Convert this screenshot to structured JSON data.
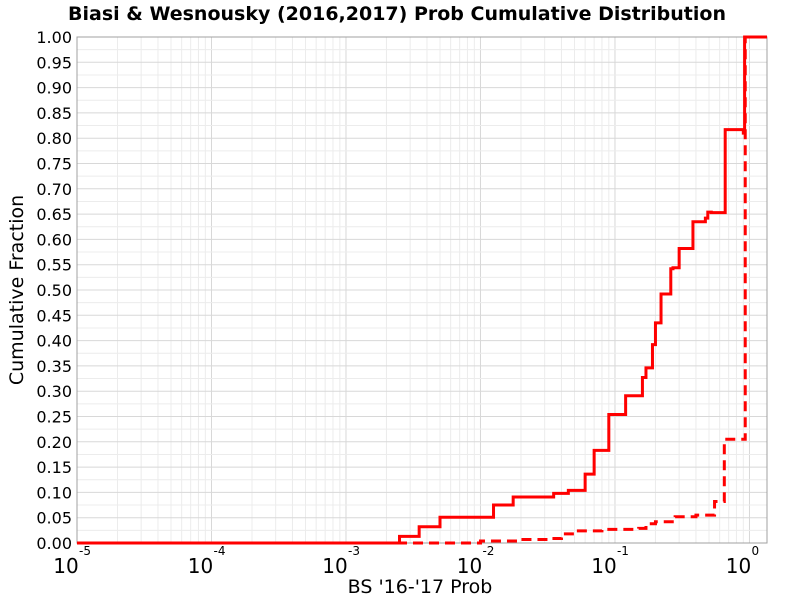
{
  "chart_data": {
    "type": "line",
    "title": "Biasi & Wesnousky (2016,2017) Prob Cumulative Distribution",
    "xlabel": "BS '16-'17 Prob",
    "ylabel": "Cumulative Fraction",
    "x_scale": "log",
    "xlim": [
      1e-05,
      1.35
    ],
    "ylim": [
      0,
      1
    ],
    "grid": true,
    "x_ticks": [
      {
        "base": "10",
        "exp": "-5",
        "value": 1e-05
      },
      {
        "base": "10",
        "exp": "-4",
        "value": 0.0001
      },
      {
        "base": "10",
        "exp": "-3",
        "value": 0.001
      },
      {
        "base": "10",
        "exp": "-2",
        "value": 0.01
      },
      {
        "base": "10",
        "exp": "-1",
        "value": 0.1
      },
      {
        "base": "10",
        "exp": "0",
        "value": 1
      }
    ],
    "y_ticks": [
      "0.00",
      "0.05",
      "0.10",
      "0.15",
      "0.20",
      "0.25",
      "0.30",
      "0.35",
      "0.40",
      "0.45",
      "0.50",
      "0.55",
      "0.60",
      "0.65",
      "0.70",
      "0.75",
      "0.80",
      "0.85",
      "0.90",
      "0.95",
      "1.00"
    ],
    "series": [
      {
        "style": "solid",
        "color": "#ff0000",
        "x": [
          1e-05,
          0.0025,
          0.0035,
          0.005,
          0.0125,
          0.0175,
          0.035,
          0.045,
          0.06,
          0.07,
          0.09,
          0.12,
          0.16,
          0.17,
          0.19,
          0.2,
          0.22,
          0.26,
          0.27,
          0.3,
          0.38,
          0.47,
          0.49,
          0.52,
          0.66,
          0.9,
          0.92,
          1.35
        ],
        "y": [
          0.0,
          0.013,
          0.032,
          0.051,
          0.075,
          0.091,
          0.098,
          0.104,
          0.136,
          0.183,
          0.254,
          0.291,
          0.327,
          0.346,
          0.392,
          0.435,
          0.492,
          0.542,
          0.544,
          0.582,
          0.635,
          0.642,
          0.654,
          0.653,
          0.817,
          0.81,
          1.0,
          1.0
        ]
      },
      {
        "style": "dashed",
        "color": "#ff0000",
        "x": [
          1e-05,
          0.01,
          0.02,
          0.032,
          0.04,
          0.05,
          0.08,
          0.15,
          0.17,
          0.2,
          0.28,
          0.4,
          0.55,
          0.65,
          0.9,
          0.93,
          1.35
        ],
        "y": [
          0.0,
          0.004,
          0.007,
          0.009,
          0.018,
          0.024,
          0.027,
          0.029,
          0.038,
          0.042,
          0.052,
          0.055,
          0.082,
          0.205,
          0.205,
          1.0,
          1.0
        ]
      }
    ]
  }
}
